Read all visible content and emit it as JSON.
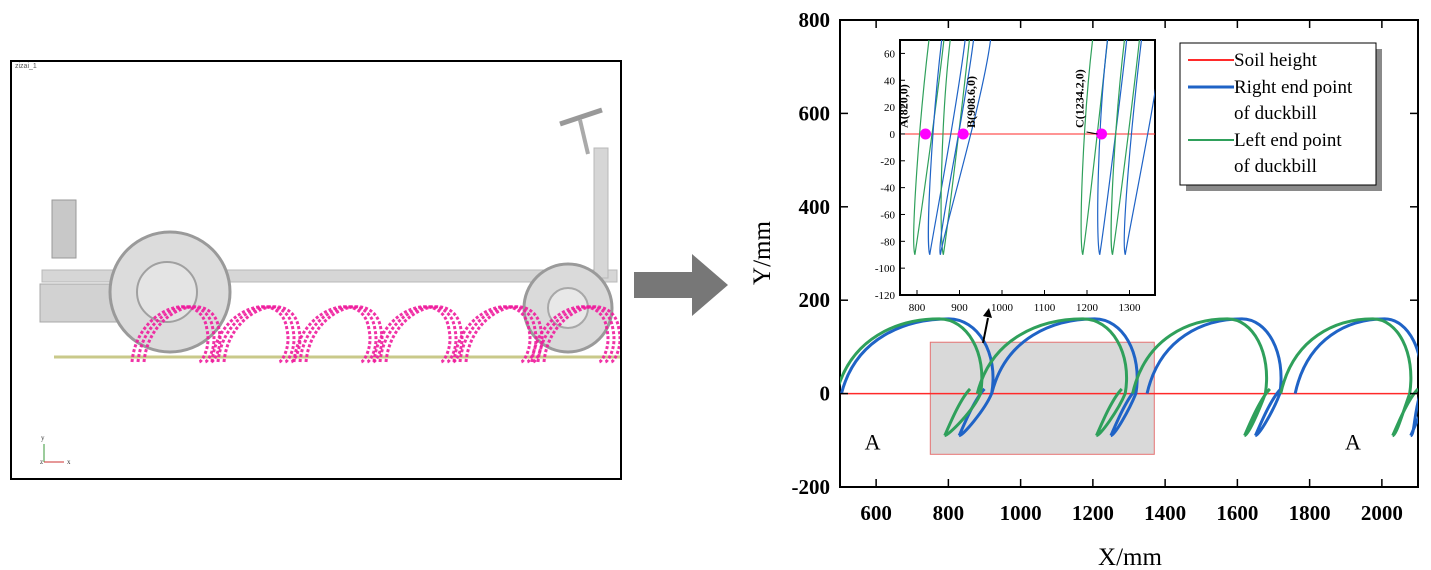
{
  "simulation": {
    "title": "zizai_1",
    "axis_y": "y",
    "axis_z": "z",
    "axis_x": "x",
    "colors": {
      "trajectory": "#ee1c9c",
      "ground": "#c9c98a",
      "machine": "#d4d4d4"
    }
  },
  "chart_data": {
    "type": "line",
    "xlabel": "X/mm",
    "ylabel": "Y/mm",
    "xlim": [
      500,
      2100
    ],
    "ylim": [
      -200,
      800
    ],
    "xticks": [
      "600",
      "800",
      "1000",
      "1200",
      "1400",
      "1600",
      "1800",
      "2000"
    ],
    "yticks": [
      "-200",
      "0",
      "200",
      "400",
      "600",
      "800"
    ],
    "series": [
      {
        "name": "Soil height",
        "color": "#ff2a2a"
      },
      {
        "name": "Right end point of duckbill",
        "legend_lines": [
          "Right end point",
          "of duckbill"
        ],
        "color": "#1f63c6",
        "cycles": [
          {
            "start": 504,
            "top": [
              900,
              160
            ],
            "bottom": [
              830,
              -90
            ]
          },
          {
            "start": 920,
            "top": [
              1300,
              160
            ],
            "bottom": [
              1250,
              -90
            ]
          },
          {
            "start": 1350,
            "top": [
              1700,
              160
            ],
            "bottom": [
              1650,
              -90
            ]
          },
          {
            "start": 1760,
            "top": [
              2090,
              160
            ],
            "bottom": [
              2080,
              -90
            ]
          }
        ]
      },
      {
        "name": "Left end point of duckbill",
        "legend_lines": [
          "Left end point",
          "of duckbill"
        ],
        "color": "#2fa05b",
        "cycles": [
          {
            "start": 490,
            "top": [
              870,
              160
            ],
            "bottom": [
              790,
              -90
            ]
          },
          {
            "start": 880,
            "top": [
              1270,
              160
            ],
            "bottom": [
              1210,
              -90
            ]
          },
          {
            "start": 1310,
            "top": [
              1660,
              160
            ],
            "bottom": [
              1620,
              -90
            ]
          },
          {
            "start": 1720,
            "top": [
              2060,
              160
            ],
            "bottom": [
              2030,
              -90
            ]
          }
        ]
      }
    ],
    "annotations": [
      {
        "text": "A",
        "x": 590,
        "y": -120
      },
      {
        "text": "A",
        "x": 1920,
        "y": -120
      }
    ],
    "highlight_region": {
      "x": [
        750,
        1370
      ],
      "y": [
        -130,
        110
      ]
    },
    "inset": {
      "xlim": [
        760,
        1360
      ],
      "ylim": [
        -120,
        70
      ],
      "xticks": [
        "800",
        "900",
        "1000",
        "1100",
        "1200",
        "1300"
      ],
      "yticks": [
        "60",
        "40",
        "20",
        "0",
        "-20",
        "-40",
        "-60",
        "-80",
        "-100",
        "-120"
      ],
      "points": [
        {
          "label": "A(820,0)",
          "x": 820,
          "y": 0
        },
        {
          "label": "B(908.6,0)",
          "x": 908.6,
          "y": 0
        },
        {
          "label": "C(1234.2,0)",
          "x": 1234.2,
          "y": 0
        }
      ],
      "point_color": "#ff00ff"
    }
  }
}
